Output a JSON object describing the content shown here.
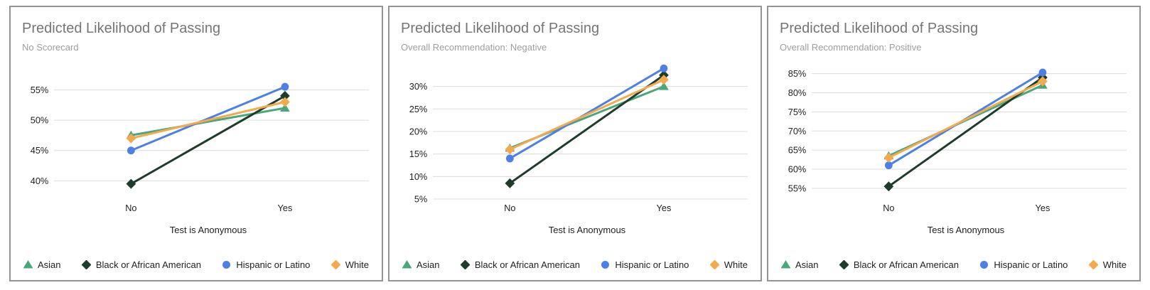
{
  "theme": {
    "title_color": "#757575",
    "subtitle_color": "#9e9e9e",
    "axis_text_color": "#202124",
    "grid_color": "#dcdcdc",
    "card_border_color": "#949494"
  },
  "chart_data": [
    {
      "type": "line",
      "title": "Predicted Likelihood of Passing",
      "subtitle": "No Scorecard",
      "xlabel": "Test is Anonymous",
      "categories": [
        "No",
        "Yes"
      ],
      "yticks": [
        40,
        45,
        50,
        55
      ],
      "ylim": [
        37.0,
        59.5
      ],
      "tick_format": "percent",
      "grid": true,
      "legend_position": "bottom",
      "series": [
        {
          "name": "Asian",
          "marker": "triangle",
          "color": "#4aa77c",
          "values": [
            47.5,
            52.0
          ]
        },
        {
          "name": "Black or African American",
          "marker": "diamond",
          "color": "#1e3c2b",
          "values": [
            39.5,
            54.0
          ]
        },
        {
          "name": "Hispanic or Latino",
          "marker": "circle",
          "color": "#4d80e4",
          "values": [
            45.0,
            55.5
          ]
        },
        {
          "name": "White",
          "marker": "diamond",
          "color": "#f3aa4d",
          "values": [
            47.0,
            53.0
          ]
        }
      ]
    },
    {
      "type": "line",
      "title": "Predicted Likelihood of Passing",
      "subtitle": "Overall Recommendation: Negative",
      "xlabel": "Test is Anonymous",
      "categories": [
        "No",
        "Yes"
      ],
      "yticks": [
        5,
        10,
        15,
        20,
        25,
        30
      ],
      "ylim": [
        5.0,
        35.3
      ],
      "tick_format": "percent",
      "grid": true,
      "legend_position": "bottom",
      "series": [
        {
          "name": "Asian",
          "marker": "triangle",
          "color": "#4aa77c",
          "values": [
            16.3,
            30.0
          ]
        },
        {
          "name": "Black or African American",
          "marker": "diamond",
          "color": "#1e3c2b",
          "values": [
            8.5,
            32.5
          ]
        },
        {
          "name": "Hispanic or Latino",
          "marker": "circle",
          "color": "#4d80e4",
          "values": [
            14.0,
            34.0
          ]
        },
        {
          "name": "White",
          "marker": "diamond",
          "color": "#f3aa4d",
          "values": [
            16.0,
            31.5
          ]
        }
      ]
    },
    {
      "type": "line",
      "title": "Predicted Likelihood of Passing",
      "subtitle": "Overall Recommendation: Positive",
      "xlabel": "Test is Anonymous",
      "categories": [
        "No",
        "Yes"
      ],
      "yticks": [
        55,
        60,
        65,
        70,
        75,
        80,
        85
      ],
      "ylim": [
        52.2,
        87.9
      ],
      "tick_format": "percent",
      "grid": true,
      "legend_position": "bottom",
      "series": [
        {
          "name": "Asian",
          "marker": "triangle",
          "color": "#4aa77c",
          "values": [
            63.5,
            82.0
          ]
        },
        {
          "name": "Black or African American",
          "marker": "diamond",
          "color": "#1e3c2b",
          "values": [
            55.5,
            84.0
          ]
        },
        {
          "name": "Hispanic or Latino",
          "marker": "circle",
          "color": "#4d80e4",
          "values": [
            61.0,
            85.3
          ]
        },
        {
          "name": "White",
          "marker": "diamond",
          "color": "#f3aa4d",
          "values": [
            63.0,
            83.0
          ]
        }
      ]
    }
  ]
}
